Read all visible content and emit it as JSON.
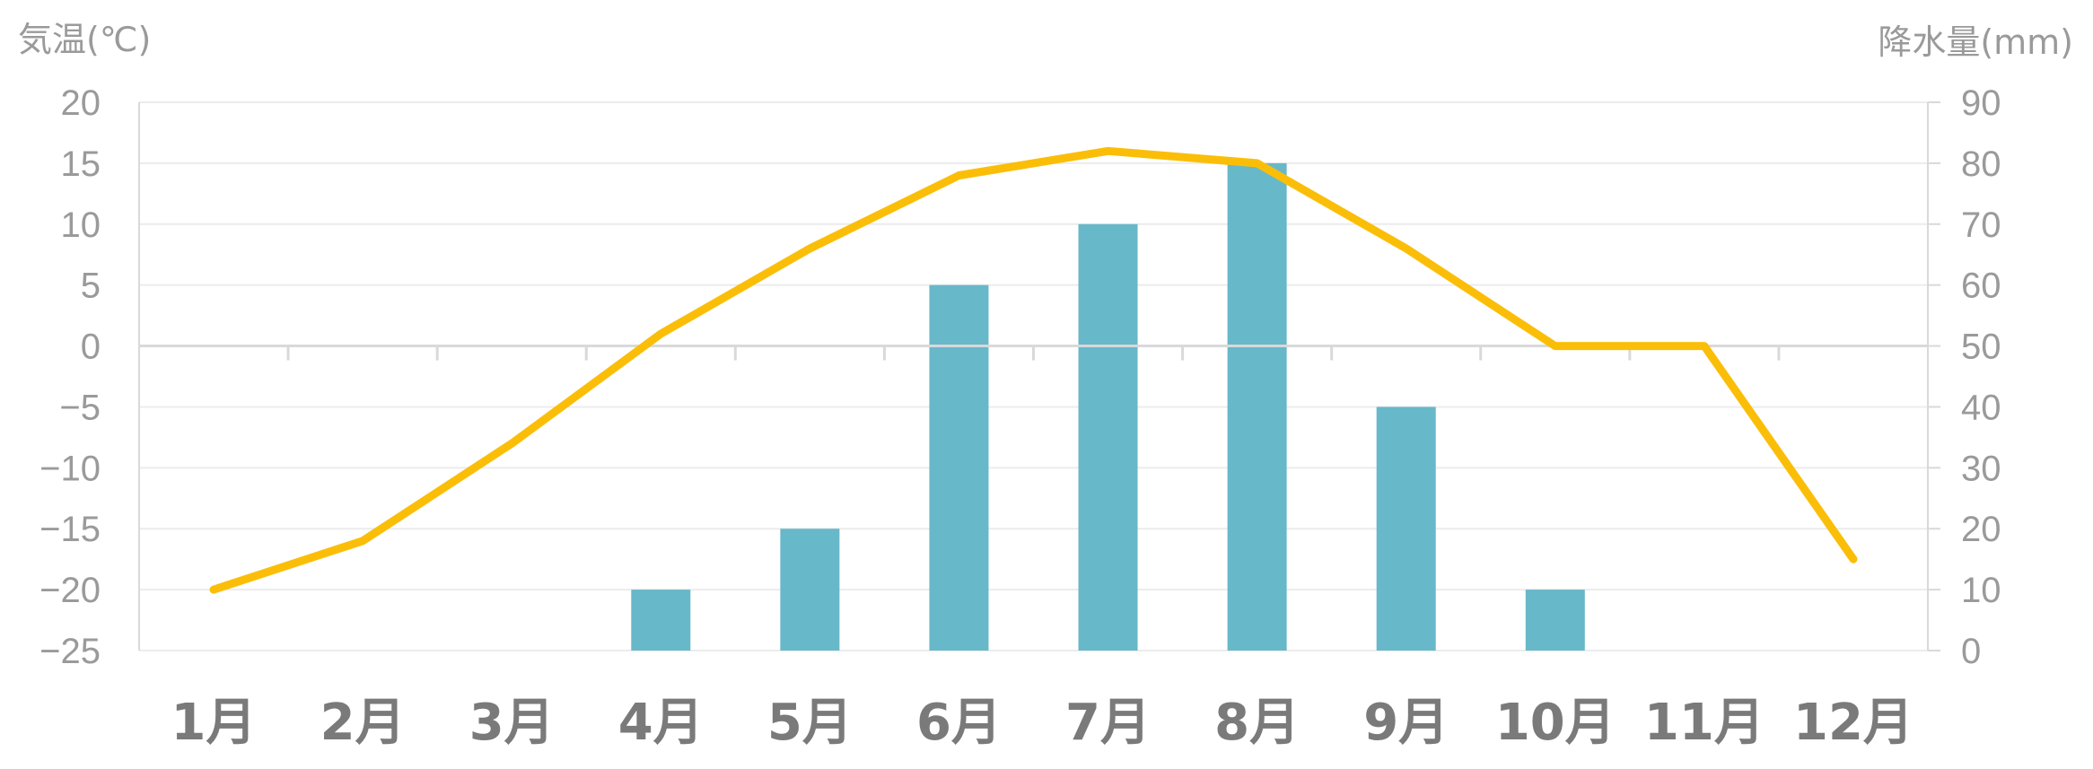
{
  "chart_data": {
    "type": "bar+line",
    "categories": [
      "1月",
      "2月",
      "3月",
      "4月",
      "5月",
      "6月",
      "7月",
      "8月",
      "9月",
      "10月",
      "11月",
      "12月"
    ],
    "series": [
      {
        "type": "bar",
        "axis": "right",
        "values": [
          0,
          0,
          0,
          10,
          20,
          60,
          70,
          80,
          40,
          10,
          0,
          0
        ]
      },
      {
        "type": "line",
        "axis": "left",
        "values": [
          -20,
          -16,
          -8,
          1,
          8,
          14,
          16,
          15,
          8,
          0,
          0,
          -17.5
        ]
      }
    ],
    "left_axis": {
      "label": "気温(℃)",
      "range": [
        -25,
        20
      ],
      "ticks": [
        "20",
        "15",
        "10",
        "5",
        "0",
        "−5",
        "−10",
        "−15",
        "−20",
        "−25"
      ]
    },
    "right_axis": {
      "label": "降水量(mm)",
      "range": [
        0,
        90
      ],
      "ticks": [
        "90",
        "80",
        "70",
        "60",
        "50",
        "40",
        "30",
        "20",
        "10",
        "0"
      ]
    },
    "grid": true,
    "colors": {
      "bar": "#67b8c9",
      "line": "#fbbe08",
      "grid": "#ececec",
      "axis": "#d9d9d9"
    }
  }
}
